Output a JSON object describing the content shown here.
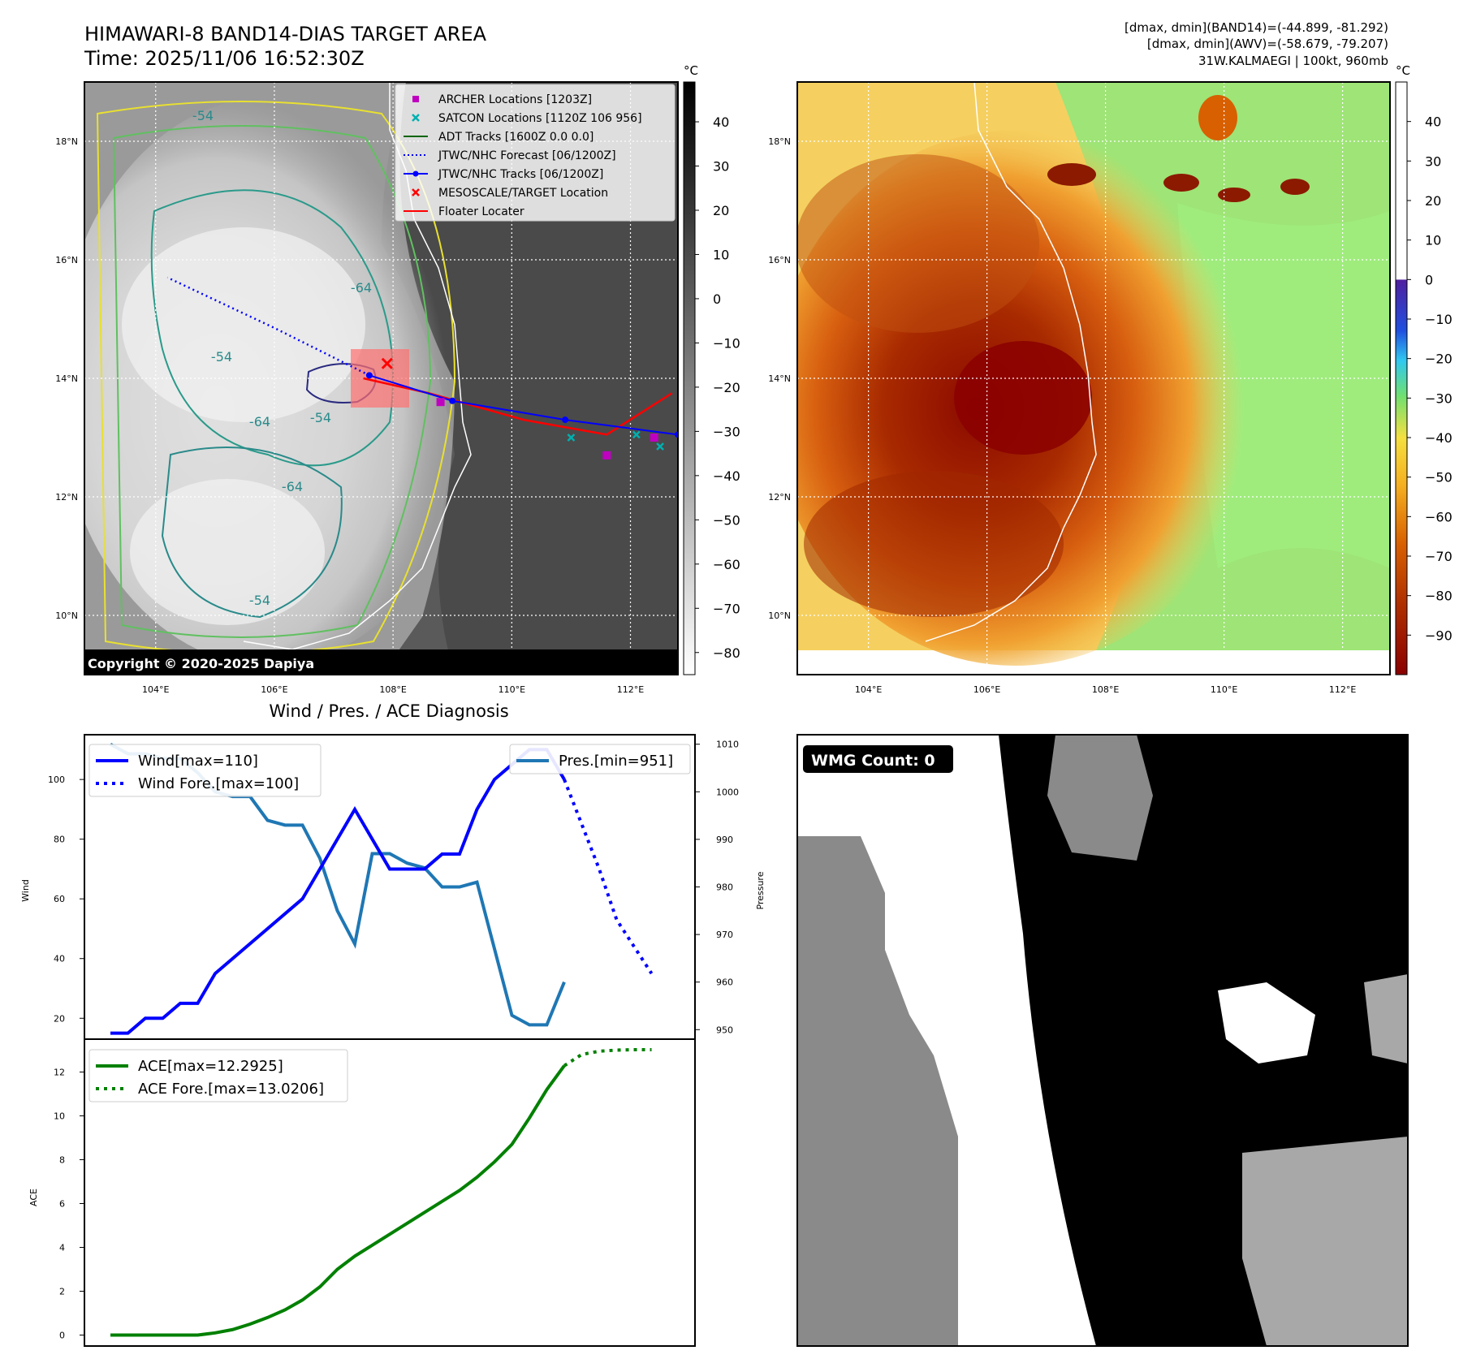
{
  "header": {
    "title_line1": "HIMAWARI-8 BAND14-DIAS TARGET AREA",
    "title_line2": "Time: 2025/11/06 16:52:30Z",
    "right_line1": "[dmax, dmin](BAND14)=(-44.899, -81.292)",
    "right_line2": "[dmax, dmin](AWV)=(-58.679, -79.207)",
    "right_line3": "31W.KALMAEGI | 100kt, 960mb"
  },
  "colors": {
    "wind": "#0000ff",
    "pressure": "#1f77b4",
    "ace": "#008000",
    "archer": "#c000c0",
    "satcon": "#00b0b0",
    "adt": "#006400",
    "forecast": "#0000ff",
    "track": "#0000ff",
    "target": "#ff0000",
    "floater": "#ff0000"
  },
  "map_common": {
    "lat_labels": [
      "18°N",
      "16°N",
      "14°N",
      "12°N",
      "10°N"
    ],
    "lat_values": [
      18,
      16,
      14,
      12,
      10
    ],
    "lon_labels": [
      "104°E",
      "106°E",
      "108°E",
      "110°E",
      "112°E"
    ],
    "lon_values": [
      104,
      106,
      108,
      110,
      112
    ],
    "extent": {
      "lon_min": 102.8,
      "lon_max": 112.8,
      "lat_min": 9,
      "lat_max": 19
    }
  },
  "ir_map": {
    "copyright": "Copyright © 2020-2025 Dapiya",
    "colorbar_unit": "°C",
    "colorbar_ticks": [
      "40",
      "30",
      "20",
      "10",
      "0",
      "−10",
      "−20",
      "−30",
      "−40",
      "−50",
      "−60",
      "−70",
      "−80"
    ],
    "colorbar_range": [
      -85,
      49
    ],
    "contour_labels": [
      "-54",
      "-64",
      "-64",
      "-64",
      "-54",
      "-54",
      "-54"
    ],
    "legend": [
      {
        "label": "ARCHER Locations [1203Z]",
        "marker": "square",
        "color": "#c000c0"
      },
      {
        "label": "SATCON Locations [1120Z 106 956]",
        "marker": "x",
        "color": "#00b0b0"
      },
      {
        "label": "ADT Tracks [1600Z 0.0 0.0]",
        "marker": "line",
        "color": "#006400"
      },
      {
        "label": "JTWC/NHC Forecast [06/1200Z]",
        "marker": "dotted",
        "color": "#0000ff"
      },
      {
        "label": "JTWC/NHC Tracks [06/1200Z]",
        "marker": "line-dot",
        "color": "#0000ff"
      },
      {
        "label": "MESOSCALE/TARGET Location",
        "marker": "x",
        "color": "#ff0000"
      },
      {
        "label": "Floater Locater",
        "marker": "line",
        "color": "#ff0000"
      }
    ],
    "jtwc_track": [
      [
        112.8,
        13.05
      ],
      [
        110.9,
        13.3
      ],
      [
        109.0,
        13.62
      ],
      [
        107.6,
        14.05
      ]
    ],
    "jtwc_forecast": [
      [
        107.6,
        14.05
      ],
      [
        106.0,
        14.85
      ],
      [
        104.2,
        15.7
      ]
    ],
    "floater_track": [
      [
        112.7,
        13.75
      ],
      [
        111.6,
        13.05
      ],
      [
        110.2,
        13.3
      ],
      [
        108.6,
        13.75
      ],
      [
        107.5,
        14.0
      ]
    ],
    "archer_points": [
      [
        108.8,
        13.6
      ],
      [
        111.6,
        12.7
      ],
      [
        112.4,
        13.0
      ]
    ],
    "satcon_points": [
      [
        111.0,
        13.0
      ],
      [
        112.1,
        13.05
      ],
      [
        112.5,
        12.85
      ]
    ],
    "target_point": [
      107.9,
      14.25
    ]
  },
  "awv_map": {
    "colorbar_unit": "°C",
    "colorbar_ticks": [
      "40",
      "30",
      "20",
      "10",
      "0",
      "−10",
      "−20",
      "−30",
      "−40",
      "−50",
      "−60",
      "−70",
      "−80",
      "−90"
    ],
    "colorbar_range": [
      -100,
      50
    ]
  },
  "wmg_panel": {
    "badge": "WMG Count: 0"
  },
  "chart_data": [
    {
      "type": "line",
      "title": "Wind / Pres. / ACE Diagnosis",
      "ylabel": "Wind",
      "ylabel_right": "Pressure",
      "ylim": [
        13,
        115
      ],
      "ylim_right": [
        948,
        1012
      ],
      "yticks": [
        20,
        40,
        60,
        80,
        100
      ],
      "yticks_right": [
        950,
        960,
        970,
        980,
        990,
        1000,
        1010
      ],
      "legend_left": [
        "Wind[max=110]",
        "Wind Fore.[max=100]"
      ],
      "legend_right": [
        "Pres.[min=951]"
      ],
      "series": [
        {
          "name": "Wind[max=110]",
          "axis": "left",
          "style": "solid",
          "color": "#0000ff",
          "x": [
            0,
            1,
            2,
            3,
            4,
            5,
            6,
            11,
            14,
            16,
            17,
            18,
            19,
            20,
            21,
            22,
            24,
            25,
            26
          ],
          "values": [
            15,
            15,
            20,
            20,
            25,
            25,
            35,
            60,
            90,
            70,
            70,
            70,
            75,
            75,
            90,
            100,
            110,
            110,
            100
          ]
        },
        {
          "name": "Wind Fore.[max=100]",
          "axis": "left",
          "style": "dotted",
          "color": "#0000ff",
          "x": [
            26,
            27,
            28,
            29,
            30,
            31
          ],
          "values": [
            100,
            85,
            70,
            53,
            44,
            35
          ]
        },
        {
          "name": "Pres.[min=951]",
          "axis": "right",
          "style": "solid",
          "color": "#1f77b4",
          "x": [
            0,
            1,
            2,
            3,
            4,
            5,
            6,
            7,
            8,
            9,
            10,
            11,
            12,
            13,
            14,
            15,
            16,
            17,
            18,
            19,
            20,
            21,
            22,
            23,
            24,
            25,
            26
          ],
          "values": [
            1010,
            1008,
            1008,
            1007,
            1007,
            1004,
            1000,
            999,
            999,
            994,
            993,
            993,
            986,
            975,
            968,
            987,
            987,
            985,
            984,
            980,
            980,
            981,
            967,
            953,
            951,
            951,
            960
          ]
        }
      ]
    },
    {
      "type": "line",
      "ylabel": "ACE",
      "ylim": [
        -0.5,
        13.5
      ],
      "yticks": [
        0,
        2,
        4,
        6,
        8,
        10,
        12
      ],
      "legend": [
        "ACE[max=12.2925]",
        "ACE Fore.[max=13.0206]"
      ],
      "series": [
        {
          "name": "ACE[max=12.2925]",
          "style": "solid",
          "color": "#008000",
          "x": [
            0,
            1,
            2,
            3,
            4,
            5,
            6,
            7,
            8,
            9,
            10,
            11,
            12,
            13,
            14,
            15,
            16,
            17,
            18,
            19,
            20,
            21,
            22,
            23,
            24,
            25,
            26
          ],
          "values": [
            0,
            0,
            0,
            0,
            0,
            0,
            0.1,
            0.25,
            0.5,
            0.8,
            1.15,
            1.6,
            2.2,
            3.0,
            3.6,
            4.1,
            4.6,
            5.1,
            5.6,
            6.1,
            6.6,
            7.2,
            7.9,
            8.7,
            9.9,
            11.2,
            12.29
          ]
        },
        {
          "name": "ACE Fore.[max=13.0206]",
          "style": "dotted",
          "color": "#008000",
          "x": [
            26,
            27,
            28,
            29,
            30,
            31
          ],
          "values": [
            12.29,
            12.8,
            12.95,
            13.0,
            13.02,
            13.02
          ]
        }
      ]
    }
  ]
}
